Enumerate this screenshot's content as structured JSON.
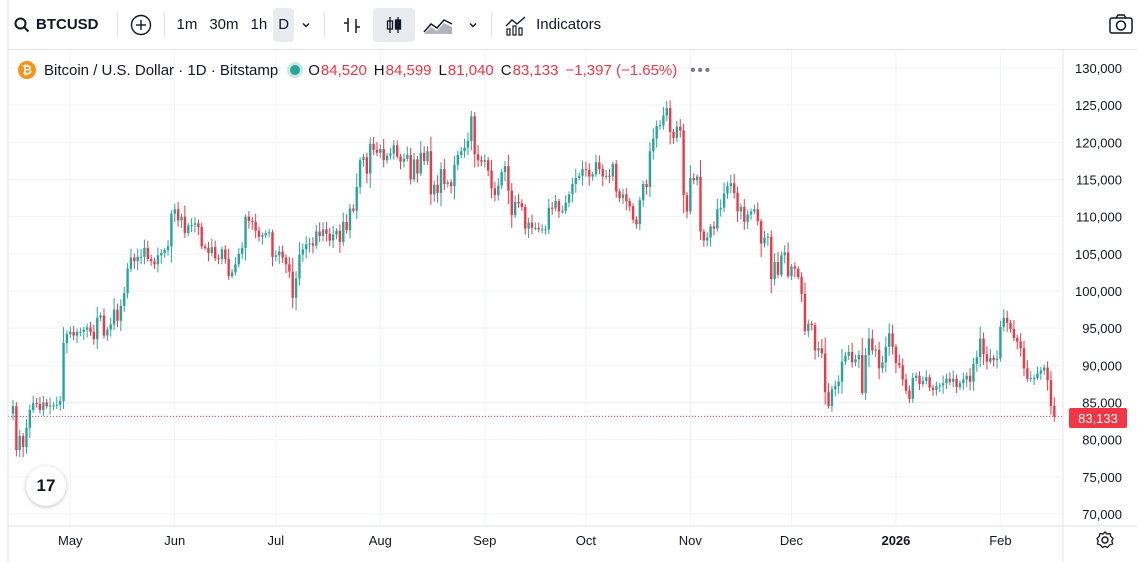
{
  "toolbar": {
    "symbol": "BTCUSD",
    "intervals": [
      "1m",
      "30m",
      "1h",
      "D"
    ],
    "active_interval": "D",
    "indicators_label": "Indicators"
  },
  "legend": {
    "title": "Bitcoin / U.S. Dollar · 1D · Bitstamp",
    "open_label": "O",
    "open": "84,520",
    "high_label": "H",
    "high": "84,599",
    "low_label": "L",
    "low": "81,040",
    "close_label": "C",
    "close": "83,133",
    "change": "−1,397 (−1.65%)"
  },
  "price_tag": "83,133",
  "tv_logo": "17",
  "colors": {
    "up": "#26a69a",
    "down": "#f23645",
    "grid": "#f0f3fa",
    "text": "#131722"
  },
  "chart_data": {
    "type": "candlestick",
    "symbol": "BTCUSD",
    "interval": "1D",
    "ylim": [
      68000,
      131500
    ],
    "y_ticks": [
      70000,
      75000,
      80000,
      85000,
      90000,
      95000,
      100000,
      105000,
      110000,
      115000,
      120000,
      125000,
      130000
    ],
    "y_tick_labels": [
      "70,000",
      "75,000",
      "80,000",
      "85,000",
      "90,000",
      "95,000",
      "100,000",
      "105,000",
      "110,000",
      "115,000",
      "120,000",
      "125,000",
      "130,000"
    ],
    "x_ticks": [
      {
        "label": "May",
        "day": 17
      },
      {
        "label": "Jun",
        "day": 48
      },
      {
        "label": "Jul",
        "day": 78
      },
      {
        "label": "Aug",
        "day": 109
      },
      {
        "label": "Sep",
        "day": 140
      },
      {
        "label": "Oct",
        "day": 170
      },
      {
        "label": "Nov",
        "day": 201
      },
      {
        "label": "Dec",
        "day": 231
      },
      {
        "label": "2026",
        "day": 262
      },
      {
        "label": "Feb",
        "day": 293
      }
    ],
    "start_date": "2025-04-14",
    "last_price": 83133,
    "closes": [
      84500,
      78600,
      80500,
      79000,
      81600,
      84000,
      84900,
      84800,
      84000,
      85000,
      84500,
      84600,
      84600,
      84700,
      85200,
      93000,
      94200,
      94500,
      94000,
      94500,
      94500,
      94800,
      95100,
      94500,
      93500,
      96400,
      96700,
      94000,
      94800,
      95500,
      97500,
      96000,
      98000,
      99700,
      103000,
      104500,
      104000,
      104600,
      104600,
      105800,
      104300,
      104000,
      103600,
      104800,
      105100,
      105500,
      106000,
      110400,
      111000,
      109500,
      110000,
      107800,
      108800,
      108900,
      109100,
      108600,
      106000,
      105800,
      105100,
      105900,
      104400,
      104300,
      105600,
      104300,
      102000,
      102500,
      103600,
      105000,
      105800,
      110000,
      109400,
      109300,
      108100,
      107300,
      107500,
      107800,
      107900,
      104600,
      104800,
      105300,
      104500,
      103600,
      102600,
      99100,
      101700,
      104900,
      105600,
      106300,
      106400,
      106100,
      108000,
      107400,
      108300,
      107700,
      106800,
      107600,
      108100,
      106600,
      109300,
      108200,
      111100,
      110800,
      114000,
      117600,
      118000,
      115800,
      119800,
      119000,
      118600,
      119100,
      117600,
      118200,
      118500,
      119600,
      118100,
      117400,
      117800,
      118300,
      115000,
      117700,
      115800,
      118600,
      117500,
      118800,
      113000,
      114300,
      113200,
      116400,
      114400,
      114600,
      114100,
      117000,
      118300,
      118800,
      119300,
      120200,
      123500,
      118400,
      117600,
      117400,
      117600,
      116200,
      113800,
      112900,
      114200,
      116000,
      116800,
      113500,
      110200,
      112000,
      111800,
      111300,
      108400,
      109200,
      108500,
      108500,
      108300,
      108300,
      108300,
      111200,
      111100,
      112100,
      110700,
      110800,
      111900,
      113000,
      114400,
      115200,
      115500,
      116400,
      116300,
      115400,
      115700,
      117300,
      116400,
      115400,
      115500,
      115400,
      117100,
      113400,
      112500,
      113000,
      112100,
      111400,
      109600,
      109000,
      112200,
      114400,
      114000,
      118800,
      120500,
      122200,
      122300,
      123600,
      124600,
      121400,
      120600,
      122100,
      121600,
      112900,
      110700,
      115200,
      114900,
      115400,
      108000,
      106800,
      107200,
      108700,
      108400,
      111000,
      111200,
      113100,
      114100,
      114500,
      113200,
      110700,
      111300,
      109300,
      110300,
      110700,
      111000,
      109400,
      106400,
      107200,
      107300,
      101600,
      103900,
      102200,
      104800,
      105200,
      102000,
      103300,
      103000,
      101900,
      99600,
      94600,
      95600,
      95400,
      92000,
      92300,
      91600,
      86400,
      84500,
      86800,
      87200,
      87800,
      90500,
      91300,
      91800,
      90400,
      90800,
      91400,
      86300,
      91400,
      93600,
      92000,
      92100,
      89600,
      90400,
      92500,
      94300,
      92500,
      90300,
      90000,
      88100,
      86600,
      85500,
      88300,
      88600,
      87500,
      87900,
      88400,
      87000,
      86700,
      87200,
      87300,
      87600,
      88200,
      87800,
      88200,
      87100,
      87600,
      88100,
      88600,
      87800,
      90200,
      91100,
      93600,
      91500,
      90500,
      91000,
      90700,
      90900,
      95200,
      96400,
      95700,
      94900,
      93700,
      93200,
      92300,
      89600,
      88200,
      88300,
      88300,
      88900,
      89300,
      89700,
      88000,
      84520,
      83133
    ]
  }
}
